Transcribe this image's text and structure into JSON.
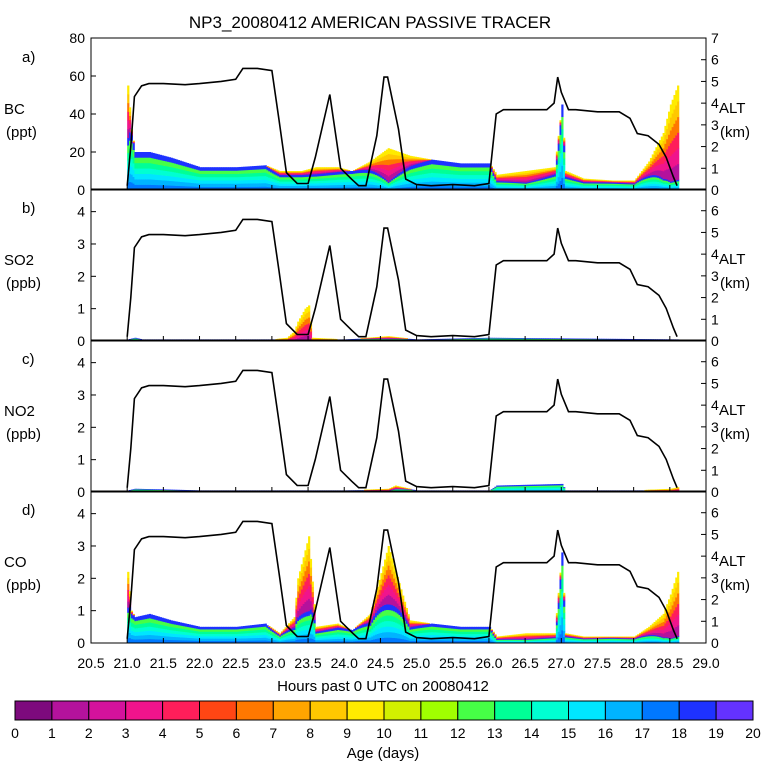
{
  "chart_data": {
    "type": "area",
    "title": "NP3_20080412 AMERICAN PASSIVE TRACER",
    "xlabel": "Hours past 0 UTC on 20080412",
    "xlim": [
      20.5,
      29.0
    ],
    "x_ticks": [
      "20.5",
      "21.0",
      "21.5",
      "22.0",
      "22.5",
      "23.0",
      "23.5",
      "24.0",
      "24.5",
      "25.0",
      "25.5",
      "26.0",
      "26.5",
      "27.0",
      "27.5",
      "28.0",
      "28.5",
      "29.0"
    ],
    "altitude_label": "ALT",
    "altitude_unit": "(km)",
    "altitude_ylim": [
      0,
      7
    ],
    "altitude_track": {
      "x": [
        21.0,
        21.05,
        21.1,
        21.2,
        21.3,
        21.5,
        21.8,
        22.0,
        22.3,
        22.5,
        22.6,
        22.8,
        23.0,
        23.1,
        23.2,
        23.35,
        23.5,
        23.6,
        23.8,
        23.95,
        24.1,
        24.2,
        24.3,
        24.45,
        24.55,
        24.6,
        24.75,
        24.85,
        25.0,
        25.2,
        25.5,
        25.8,
        26.0,
        26.1,
        26.2,
        26.5,
        26.8,
        26.9,
        26.95,
        27.0,
        27.1,
        27.2,
        27.5,
        27.8,
        27.95,
        28.05,
        28.2,
        28.35,
        28.45,
        28.55,
        28.6
      ],
      "alt_km": [
        0.2,
        2.0,
        4.3,
        4.8,
        4.9,
        4.9,
        4.85,
        4.9,
        5.0,
        5.1,
        5.6,
        5.6,
        5.5,
        3.2,
        0.8,
        0.3,
        0.3,
        1.5,
        4.4,
        1.0,
        0.5,
        0.2,
        0.2,
        2.5,
        5.2,
        5.2,
        2.8,
        0.5,
        0.25,
        0.2,
        0.25,
        0.2,
        0.3,
        3.5,
        3.7,
        3.7,
        3.7,
        4.0,
        5.2,
        4.5,
        3.7,
        3.7,
        3.6,
        3.6,
        3.3,
        2.6,
        2.5,
        2.1,
        1.5,
        0.6,
        0.2
      ]
    },
    "age_colorbar": {
      "label": "Age (days)",
      "ticks": [
        "0",
        "1",
        "2",
        "3",
        "4",
        "5",
        "6",
        "7",
        "8",
        "9",
        "10",
        "11",
        "12",
        "13",
        "14",
        "15",
        "16",
        "17",
        "18",
        "19",
        "20"
      ],
      "colors": [
        "#7d0a7d",
        "#b4129c",
        "#d4129c",
        "#f0148c",
        "#ff1e5a",
        "#ff4614",
        "#ff7800",
        "#ffa500",
        "#ffc800",
        "#ffeb00",
        "#d2f000",
        "#a0ff00",
        "#46ff46",
        "#00ff96",
        "#00ffd2",
        "#00e6ff",
        "#00b4ff",
        "#0078ff",
        "#1e32ff",
        "#6432ff"
      ]
    },
    "panels": [
      {
        "tag": "a)",
        "variable": "BC",
        "unit": "(ppt)",
        "ylim": [
          0,
          80
        ],
        "y_ticks": [
          "0",
          "20",
          "40",
          "60",
          "80"
        ],
        "series": {
          "x": [
            21.0,
            21.05,
            21.1,
            21.3,
            21.6,
            22.0,
            22.5,
            22.9,
            23.1,
            23.4,
            23.6,
            23.9,
            24.1,
            24.35,
            24.6,
            24.9,
            25.2,
            25.6,
            26.0,
            26.1,
            26.5,
            26.9,
            27.0,
            27.05,
            27.3,
            27.7,
            28.0,
            28.2,
            28.4,
            28.5,
            28.6
          ],
          "values": [
            55,
            32,
            20,
            20,
            17,
            12,
            12,
            13,
            10,
            10,
            12,
            12,
            10,
            15,
            22,
            18,
            16,
            14,
            14,
            8,
            10,
            12,
            45,
            10,
            6,
            5,
            5,
            15,
            30,
            45,
            55
          ],
          "young_fraction": [
            0.5,
            0.1,
            0,
            0,
            0,
            0,
            0,
            0,
            0.2,
            0.2,
            0.3,
            0.2,
            0,
            0.3,
            0.8,
            0.3,
            0,
            0,
            0,
            0.4,
            0.6,
            0.3,
            0,
            0.3,
            0.3,
            0.2,
            0.3,
            0.5,
            0.8,
            0.9,
            0.9
          ]
        }
      },
      {
        "tag": "b)",
        "variable": "SO2",
        "unit": "(ppb)",
        "ylim": [
          0,
          4.7
        ],
        "y_ticks": [
          "0",
          "1",
          "2",
          "3",
          "4"
        ],
        "series": {
          "x": [
            21.0,
            21.1,
            21.2,
            22.0,
            23.0,
            23.2,
            23.3,
            23.35,
            23.45,
            23.5,
            23.55,
            24.0,
            24.6,
            25.0,
            26.0,
            28.6
          ],
          "values": [
            0.05,
            0.1,
            0.05,
            0.05,
            0.05,
            0.1,
            0.3,
            0.6,
            1.0,
            1.1,
            0.1,
            0.05,
            0.15,
            0.05,
            0.1,
            0.05
          ],
          "young_fraction": [
            0,
            0,
            0,
            0,
            0,
            1,
            1,
            1,
            1,
            1,
            1,
            0,
            0.5,
            0,
            0,
            0
          ]
        }
      },
      {
        "tag": "c)",
        "variable": "NO2",
        "unit": "(ppb)",
        "ylim": [
          0,
          4.7
        ],
        "y_ticks": [
          "0",
          "1",
          "2",
          "3",
          "4"
        ],
        "series": {
          "x": [
            21.0,
            21.1,
            21.5,
            22.0,
            23.0,
            24.0,
            24.6,
            24.7,
            25.0,
            26.0,
            26.1,
            27.0,
            27.05,
            28.0,
            28.5,
            28.6
          ],
          "values": [
            0.05,
            0.1,
            0.08,
            0.05,
            0.05,
            0.05,
            0.1,
            0.2,
            0.05,
            0.05,
            0.2,
            0.25,
            0.05,
            0.05,
            0.1,
            0.15
          ],
          "young_fraction": [
            0,
            0,
            0,
            0,
            0,
            0,
            0.5,
            0.5,
            0,
            0,
            0,
            0,
            0,
            0,
            0.8,
            0.8
          ]
        }
      },
      {
        "tag": "d)",
        "variable": "CO",
        "unit": "(ppb)",
        "ylim": [
          0,
          4.7
        ],
        "y_ticks": [
          "0",
          "1",
          "2",
          "3",
          "4"
        ],
        "series": {
          "x": [
            21.0,
            21.05,
            21.1,
            21.3,
            21.6,
            22.0,
            22.5,
            22.9,
            23.1,
            23.3,
            23.35,
            23.5,
            23.6,
            23.9,
            24.1,
            24.35,
            24.6,
            24.9,
            25.2,
            25.6,
            26.0,
            26.1,
            26.5,
            26.9,
            27.0,
            27.05,
            27.3,
            27.7,
            28.0,
            28.2,
            28.4,
            28.5,
            28.6
          ],
          "values": [
            2.2,
            1.0,
            0.8,
            0.9,
            0.7,
            0.5,
            0.5,
            0.6,
            0.3,
            0.8,
            2.0,
            3.3,
            0.5,
            0.6,
            0.4,
            0.9,
            3.0,
            0.7,
            0.6,
            0.5,
            0.5,
            0.2,
            0.3,
            0.3,
            2.8,
            0.3,
            0.2,
            0.2,
            0.2,
            0.5,
            0.9,
            1.5,
            2.2
          ],
          "young_fraction": [
            0.5,
            0.1,
            0,
            0,
            0,
            0,
            0,
            0,
            0.2,
            0.4,
            0.6,
            0.7,
            0.3,
            0.2,
            0,
            0.3,
            0.6,
            0.3,
            0,
            0,
            0,
            0.4,
            0.6,
            0.4,
            0,
            0.3,
            0.3,
            0.2,
            0.3,
            0.5,
            0.8,
            0.9,
            0.9
          ]
        }
      }
    ]
  }
}
